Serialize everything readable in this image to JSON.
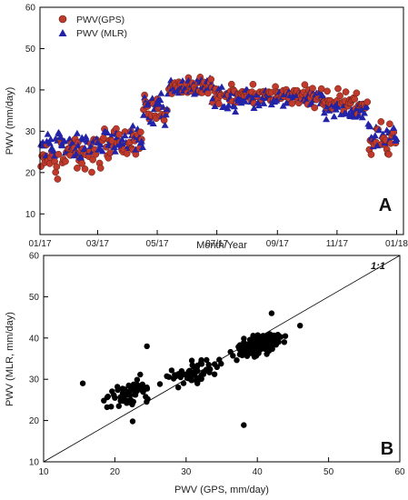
{
  "chart_data": [
    {
      "panel_label": "A",
      "type": "scatter",
      "xlabel": "Month/Year",
      "ylabel": "PWV (mm/day)",
      "ylim": [
        5,
        60
      ],
      "yticks": [
        10,
        20,
        30,
        40,
        50,
        60
      ],
      "xlim": [
        0,
        372
      ],
      "xticks": [
        {
          "label": "01/17",
          "day": 0
        },
        {
          "label": "03/17",
          "day": 59
        },
        {
          "label": "05/17",
          "day": 120
        },
        {
          "label": "07/17",
          "day": 181
        },
        {
          "label": "09/17",
          "day": 243
        },
        {
          "label": "11/17",
          "day": 304
        },
        {
          "label": "01/18",
          "day": 365
        }
      ],
      "legend_position": "top-left",
      "series": [
        {
          "name": "PWV(GPS)",
          "marker": "circle",
          "color": "#c0392b",
          "outline": "#5a1f14"
        },
        {
          "name": "PWV (MLR)",
          "marker": "triangle",
          "color": "#2323a8"
        }
      ],
      "segments": [
        {
          "start": 1,
          "end": 20,
          "gps_mean": 24,
          "gps_spread": 6,
          "mlr_mean": 27,
          "mlr_spread": 4
        },
        {
          "start": 21,
          "end": 60,
          "gps_mean": 25,
          "gps_spread": 5,
          "mlr_mean": 27,
          "mlr_spread": 4
        },
        {
          "start": 61,
          "end": 105,
          "gps_mean": 27,
          "gps_spread": 6,
          "mlr_mean": 28,
          "mlr_spread": 4
        },
        {
          "start": 106,
          "end": 130,
          "gps_mean": 35,
          "gps_spread": 5,
          "mlr_mean": 36,
          "mlr_spread": 4
        },
        {
          "start": 131,
          "end": 175,
          "gps_mean": 41,
          "gps_spread": 3,
          "mlr_mean": 41,
          "mlr_spread": 3
        },
        {
          "start": 176,
          "end": 290,
          "gps_mean": 39,
          "gps_spread": 3,
          "mlr_mean": 38,
          "mlr_spread": 3
        },
        {
          "start": 291,
          "end": 335,
          "gps_mean": 37,
          "gps_spread": 4,
          "mlr_mean": 35,
          "mlr_spread": 3
        },
        {
          "start": 336,
          "end": 365,
          "gps_mean": 28,
          "gps_spread": 7,
          "mlr_mean": 29,
          "mlr_spread": 4
        }
      ]
    },
    {
      "panel_label": "B",
      "type": "scatter",
      "xlabel": "PWV (GPS, mm/day)",
      "ylabel": "PWV (MLR, mm/day)",
      "xlim": [
        10,
        60
      ],
      "ylim": [
        10,
        60
      ],
      "xticks": [
        10,
        20,
        30,
        40,
        50,
        60
      ],
      "yticks": [
        10,
        20,
        30,
        40,
        50,
        60
      ],
      "reference_line": {
        "label": "1:1",
        "from": [
          10,
          10
        ],
        "to": [
          60,
          60
        ]
      },
      "marker_color": "#000000",
      "clusters": [
        {
          "x_mean": 22,
          "x_sd": 3.6,
          "slope": 0.55,
          "intercept": 14.5,
          "noise": 3.0,
          "count": 70
        },
        {
          "x_mean": 31,
          "x_sd": 3.2,
          "slope": 0.55,
          "intercept": 14.5,
          "noise": 3.0,
          "count": 60
        },
        {
          "x_mean": 40,
          "x_sd": 3.0,
          "slope": 0.55,
          "intercept": 16.0,
          "noise": 2.6,
          "count": 160
        }
      ],
      "points": [
        [
          38.1,
          18.9
        ],
        [
          15.5,
          29.0
        ],
        [
          22.5,
          19.8
        ],
        [
          42.0,
          46.0
        ],
        [
          46.0,
          43.0
        ],
        [
          24.5,
          38.0
        ]
      ]
    }
  ]
}
